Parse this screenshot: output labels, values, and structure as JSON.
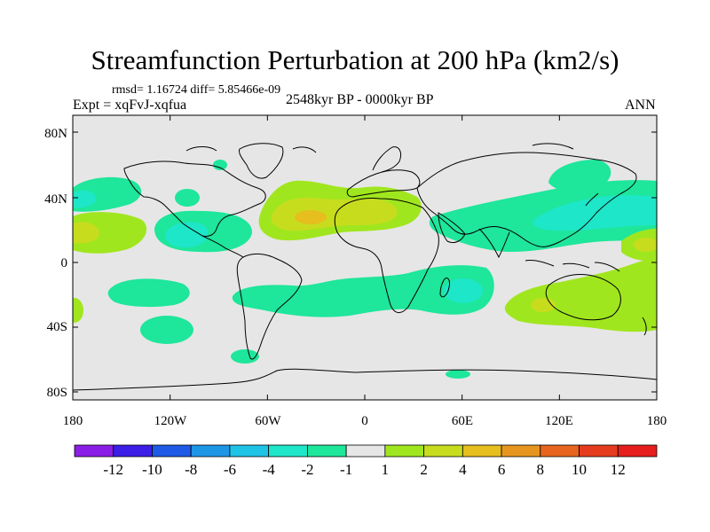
{
  "title": "Streamfunction Perturbation at 200 hPa (km2/s)",
  "stats": "rmsd= 1.16724 diff= 5.85466e-09",
  "experiment": "Expt = xqFvJ-xqfua",
  "period": "2548kyr BP - 0000kyr BP",
  "season": "ANN",
  "axes": {
    "lat_ticks": [
      "80N",
      "40N",
      "0",
      "40S",
      "80S"
    ],
    "lon_ticks": [
      "180",
      "120W",
      "60W",
      "0",
      "60E",
      "120E",
      "180"
    ]
  },
  "colorbar": {
    "labels": [
      "-12",
      "-10",
      "-8",
      "-6",
      "-4",
      "-2",
      "-1",
      "1",
      "2",
      "4",
      "6",
      "8",
      "10",
      "12"
    ],
    "colors": [
      "#8b1ee6",
      "#3c1ee6",
      "#1e5ae6",
      "#1e96e6",
      "#1ec3e6",
      "#1ee6c8",
      "#1ee69b",
      "#e6e6e6",
      "#a0e61e",
      "#c8dc1e",
      "#e6be1e",
      "#e6961e",
      "#e6641e",
      "#e63c1e",
      "#e61e1e"
    ]
  },
  "colors": {
    "background": "#e6e6e6",
    "neg_weak": "#1ee69b",
    "neg_mid": "#1ee6c8",
    "neg_strong": "#1ec3e6",
    "pos_weak": "#a0e61e",
    "pos_mid": "#c8dc1e",
    "pos_strong": "#e6be1e"
  }
}
